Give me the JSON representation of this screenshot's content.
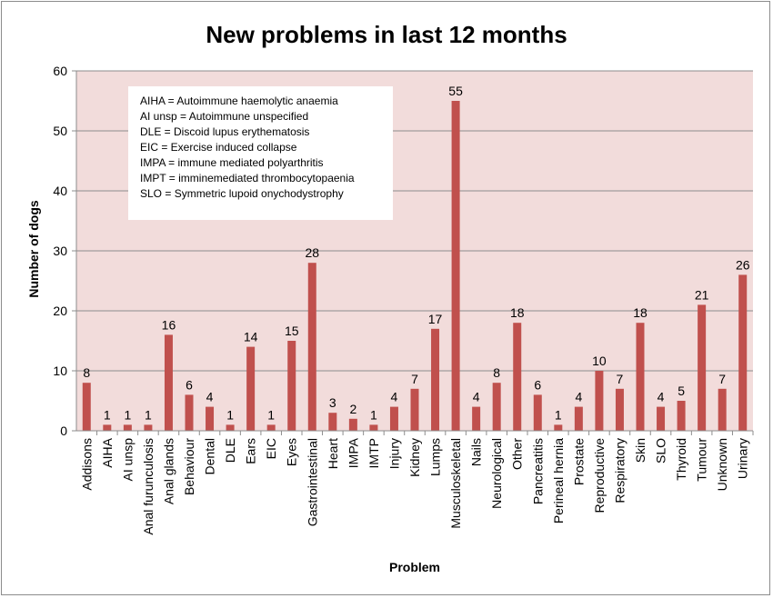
{
  "chart_data": {
    "type": "bar",
    "title": "New problems in last 12 months",
    "xlabel": "Problem",
    "ylabel": "Number of dogs",
    "ylim": [
      0,
      60
    ],
    "yticks": [
      0,
      10,
      20,
      30,
      40,
      50,
      60
    ],
    "grid": true,
    "categories": [
      "Addisons",
      "AIHA",
      "AI unsp",
      "Anal furunculosis",
      "Anal glands",
      "Behaviour",
      "Dental",
      "DLE",
      "Ears",
      "EIC",
      "Eyes",
      "Gastrointestinal",
      "Heart",
      "IMPA",
      "IMTP",
      "Injury",
      "Kidney",
      "Lumps",
      "Musculoskeletal",
      "Nails",
      "Neurological",
      "Other",
      "Pancreatitis",
      "Perineal hernia",
      "Prostate",
      "Reproductive",
      "Respiratory",
      "Skin",
      "SLO",
      "Thyroid",
      "Tumour",
      "Unknown",
      "Urinary"
    ],
    "values": [
      8,
      1,
      1,
      1,
      16,
      6,
      4,
      1,
      14,
      1,
      15,
      28,
      3,
      2,
      1,
      4,
      7,
      17,
      55,
      4,
      8,
      18,
      6,
      1,
      4,
      10,
      7,
      18,
      4,
      5,
      21,
      7,
      26
    ],
    "colors": {
      "bar": "#c0504d",
      "plot_background": "#f2dcdb",
      "gridline": "#8c8c8c"
    },
    "legend": {
      "placement": "top-left",
      "lines": [
        "AIHA = Autoimmune haemolytic anaemia",
        "AI unsp = Autoimmune unspecified",
        "DLE = Discoid lupus erythematosis",
        "EIC = Exercise induced collapse",
        "IMPA = immune mediated polyarthritis",
        "IMPT = imminemediated thrombocytopaenia",
        "SLO = Symmetric lupoid onychodystrophy"
      ]
    }
  }
}
